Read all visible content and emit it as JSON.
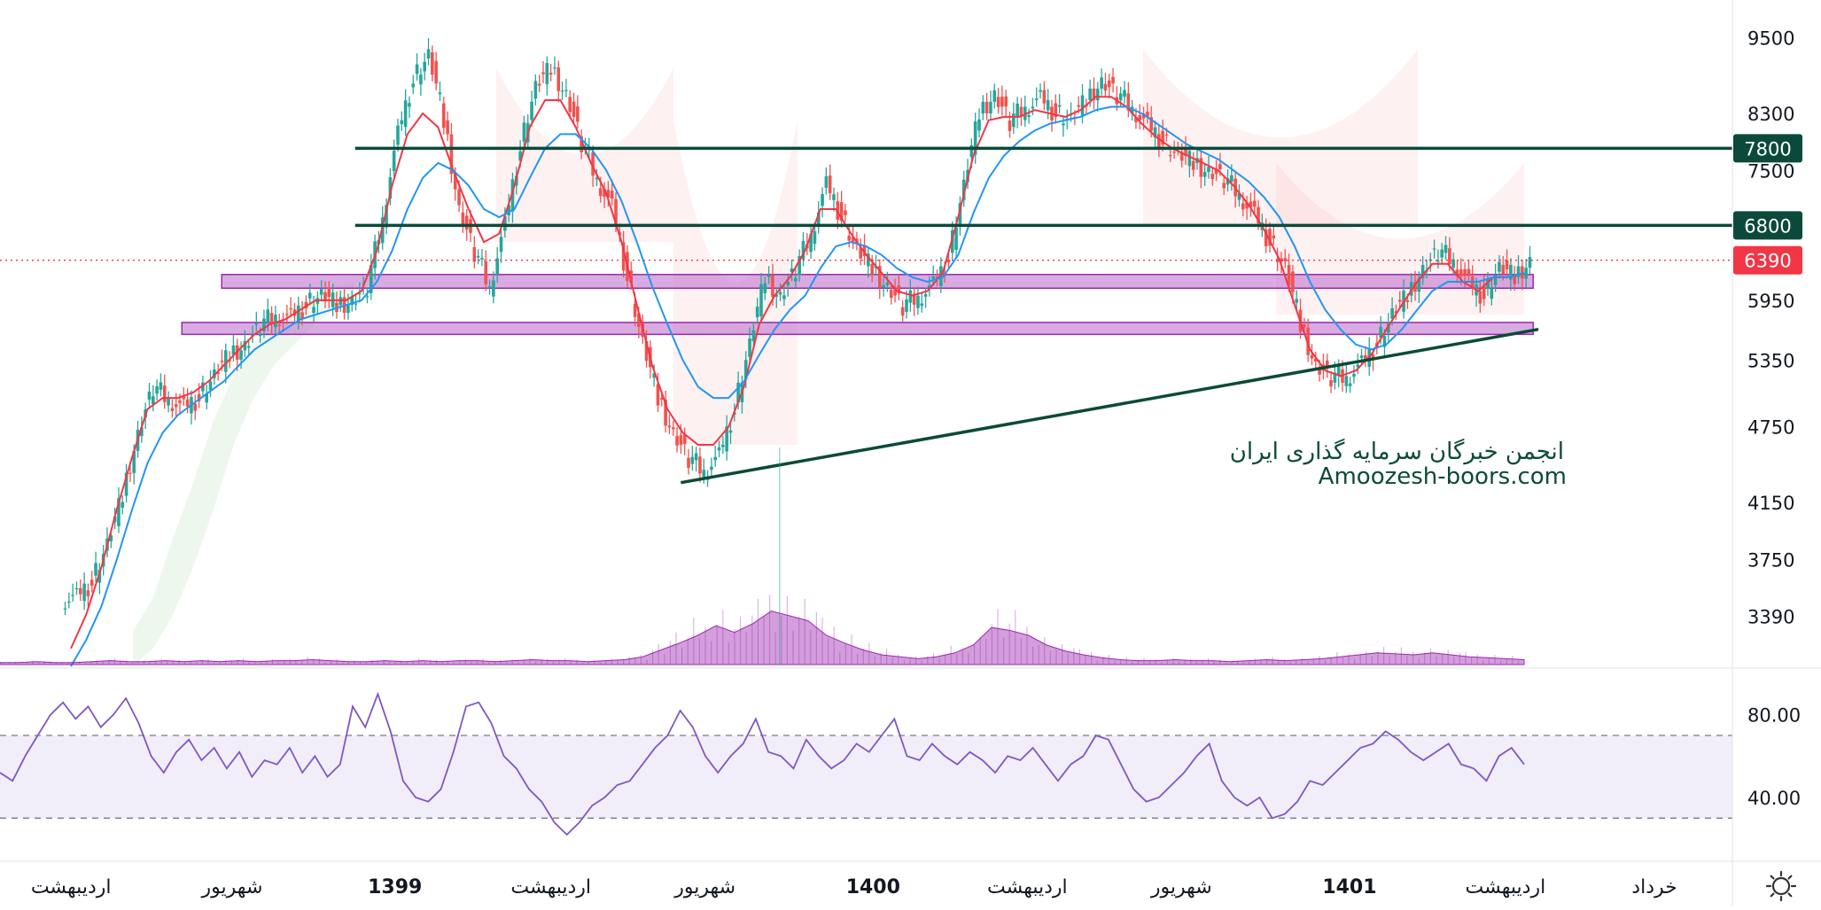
{
  "chart_data": {
    "type": "candlestick",
    "price_scale": {
      "ticks": [
        "9500",
        "8300",
        "7500",
        "5950",
        "5350",
        "4750",
        "4150",
        "3750",
        "3390"
      ],
      "ylim": [
        3100,
        10000
      ],
      "log_scale": true
    },
    "price_badges": [
      {
        "label": "7800",
        "value": 7800,
        "color": "#0b4a3a"
      },
      {
        "label": "6800",
        "value": 6800,
        "color": "#0b4a3a"
      },
      {
        "label": "6390",
        "value": 6390,
        "color": "#f23645"
      }
    ],
    "last_price": 6390,
    "resistance_lines": [
      7800,
      6800
    ],
    "support_zones": [
      {
        "low": 6080,
        "high": 6230,
        "from": 0.128,
        "to": 0.885
      },
      {
        "low": 5600,
        "high": 5720,
        "from": 0.105,
        "to": 0.885
      }
    ],
    "trendline": {
      "from": {
        "x": 0.393,
        "price": 4300
      },
      "to": {
        "x": 0.888,
        "price": 5650
      }
    },
    "ohlc_closes": [
      3500,
      3600,
      3850,
      4200,
      4700,
      5100,
      5000,
      4900,
      5000,
      5200,
      5400,
      5500,
      5700,
      5800,
      5750,
      5900,
      6000,
      5900,
      5950,
      6100,
      6900,
      8000,
      8800,
      9200,
      8200,
      7000,
      6500,
      6100,
      6800,
      7800,
      8700,
      9000,
      8600,
      7900,
      7400,
      7000,
      6200,
      5500,
      5000,
      4700,
      4500,
      4400,
      4500,
      4900,
      5500,
      6200,
      6000,
      6300,
      6700,
      7300,
      6900,
      6500,
      6300,
      6100,
      5900,
      6000,
      6100,
      6400,
      7300,
      8300,
      8600,
      8200,
      8400,
      8500,
      8300,
      8200,
      8500,
      8800,
      8600,
      8400,
      8100,
      7900,
      7700,
      7600,
      7500,
      7400,
      7200,
      6900,
      6600,
      6300,
      5700,
      5300,
      5200,
      5200,
      5300,
      5500,
      5800,
      6000,
      6300,
      6500,
      6400,
      6100,
      6000,
      6300,
      6200,
      6390
    ],
    "moving_averages": [
      {
        "color": "#f23645",
        "values": [
          3200,
          3400,
          3700,
          4100,
          4500,
          4900,
          5000,
          5000,
          5050,
          5150,
          5300,
          5450,
          5600,
          5700,
          5750,
          5850,
          5950,
          5950,
          5950,
          6050,
          6500,
          7300,
          8000,
          8300,
          8100,
          7500,
          7000,
          6600,
          6700,
          7300,
          8100,
          8500,
          8500,
          8100,
          7600,
          7200,
          6600,
          5900,
          5300,
          4900,
          4700,
          4600,
          4600,
          4750,
          5100,
          5700,
          6000,
          6200,
          6500,
          7000,
          7000,
          6700,
          6450,
          6250,
          6050,
          6000,
          6050,
          6250,
          6900,
          7700,
          8200,
          8250,
          8250,
          8350,
          8300,
          8250,
          8350,
          8550,
          8550,
          8400,
          8150,
          7950,
          7800,
          7700,
          7600,
          7500,
          7300,
          7050,
          6750,
          6400,
          5900,
          5450,
          5250,
          5200,
          5250,
          5400,
          5650,
          5900,
          6150,
          6350,
          6350,
          6150,
          6050,
          6200,
          6200,
          6250
        ]
      },
      {
        "color": "#2196f3",
        "values": [
          3100,
          3250,
          3450,
          3750,
          4100,
          4450,
          4700,
          4850,
          4950,
          5050,
          5150,
          5300,
          5450,
          5550,
          5650,
          5750,
          5800,
          5850,
          5900,
          5950,
          6150,
          6500,
          7000,
          7400,
          7600,
          7500,
          7300,
          7000,
          6900,
          7000,
          7400,
          7800,
          8000,
          8000,
          7800,
          7500,
          7100,
          6600,
          6100,
          5700,
          5350,
          5100,
          5000,
          5000,
          5150,
          5400,
          5650,
          5850,
          6000,
          6300,
          6550,
          6600,
          6550,
          6450,
          6300,
          6200,
          6150,
          6200,
          6450,
          6950,
          7400,
          7700,
          7900,
          8050,
          8150,
          8200,
          8250,
          8350,
          8400,
          8400,
          8300,
          8150,
          8000,
          7850,
          7750,
          7650,
          7500,
          7350,
          7150,
          6900,
          6550,
          6150,
          5850,
          5650,
          5500,
          5450,
          5500,
          5650,
          5850,
          6050,
          6150,
          6150,
          6150,
          6200,
          6200,
          6250
        ]
      }
    ],
    "ichimoku_cloud": [
      {
        "top": 3300,
        "bottom": 3100
      },
      {
        "top": 3500,
        "bottom": 3200
      },
      {
        "top": 3900,
        "bottom": 3400
      },
      {
        "top": 4300,
        "bottom": 3700
      },
      {
        "top": 4800,
        "bottom": 4100
      },
      {
        "top": 5200,
        "bottom": 4600
      },
      {
        "top": 5500,
        "bottom": 5000
      },
      {
        "top": 5700,
        "bottom": 5300
      },
      {
        "top": 5900,
        "bottom": 5500
      },
      {
        "top": 6000,
        "bottom": 5700
      },
      {
        "top": 6100,
        "bottom": 5850
      },
      {
        "top": 6150,
        "bottom": 5950
      }
    ],
    "time_labels": [
      {
        "label": "اردیبهشت",
        "bold": false,
        "x": 0.041
      },
      {
        "label": "شهریور",
        "bold": false,
        "x": 0.134
      },
      {
        "label": "1399",
        "bold": true,
        "x": 0.228
      },
      {
        "label": "اردیبهشت",
        "bold": false,
        "x": 0.318
      },
      {
        "label": "شهریور",
        "bold": false,
        "x": 0.407
      },
      {
        "label": "1400",
        "bold": true,
        "x": 0.504
      },
      {
        "label": "اردیبهشت",
        "bold": false,
        "x": 0.593
      },
      {
        "label": "شهریور",
        "bold": false,
        "x": 0.682
      },
      {
        "label": "1401",
        "bold": true,
        "x": 0.779
      },
      {
        "label": "اردیبهشت",
        "bold": false,
        "x": 0.869
      },
      {
        "label": "خرداد",
        "bold": false,
        "x": 0.955
      }
    ],
    "volume_profile": [
      0.02,
      0.02,
      0.03,
      0.02,
      0.02,
      0.03,
      0.04,
      0.03,
      0.03,
      0.04,
      0.03,
      0.04,
      0.03,
      0.04,
      0.03,
      0.04,
      0.04,
      0.05,
      0.04,
      0.03,
      0.03,
      0.04,
      0.03,
      0.04,
      0.03,
      0.04,
      0.04,
      0.03,
      0.04,
      0.05,
      0.04,
      0.04,
      0.03,
      0.04,
      0.05,
      0.08,
      0.15,
      0.22,
      0.3,
      0.4,
      0.33,
      0.42,
      0.55,
      0.5,
      0.45,
      0.3,
      0.22,
      0.15,
      0.1,
      0.08,
      0.06,
      0.08,
      0.12,
      0.2,
      0.38,
      0.35,
      0.3,
      0.2,
      0.14,
      0.1,
      0.07,
      0.05,
      0.04,
      0.04,
      0.05,
      0.04,
      0.04,
      0.03,
      0.04,
      0.05,
      0.04,
      0.05,
      0.06,
      0.08,
      0.1,
      0.12,
      0.11,
      0.1,
      0.12,
      0.1,
      0.08,
      0.07,
      0.06,
      0.05
    ],
    "volume_spike_at": 0.45,
    "rsi": {
      "ticks": [
        "80.00",
        "40.00"
      ],
      "ylim": [
        10,
        100
      ],
      "band": [
        70,
        30
      ],
      "values": [
        52,
        48,
        60,
        70,
        80,
        86,
        78,
        84,
        74,
        80,
        88,
        76,
        60,
        52,
        62,
        68,
        58,
        64,
        54,
        62,
        50,
        58,
        56,
        64,
        52,
        60,
        50,
        56,
        84,
        74,
        90,
        72,
        48,
        40,
        38,
        44,
        62,
        84,
        86,
        76,
        60,
        54,
        44,
        38,
        28,
        22,
        28,
        36,
        40,
        46,
        48,
        56,
        64,
        70,
        82,
        74,
        60,
        52,
        60,
        66,
        78,
        62,
        60,
        54,
        68,
        60,
        54,
        58,
        66,
        62,
        70,
        78,
        60,
        58,
        66,
        60,
        56,
        62,
        58,
        52,
        60,
        58,
        64,
        56,
        48,
        56,
        60,
        70,
        68,
        56,
        44,
        38,
        40,
        46,
        52,
        60,
        66,
        48,
        40,
        36,
        40,
        30,
        32,
        38,
        48,
        46,
        52,
        58,
        64,
        66,
        72,
        68,
        62,
        58,
        62,
        66,
        56,
        54,
        48,
        60,
        64,
        56
      ]
    },
    "watermark": {
      "line1": "انجمن خبرگان سرمایه گذاری ایران",
      "line2": "Amoozesh-boors.com"
    }
  },
  "ui": {
    "settings_icon": "sun-gear-icon"
  }
}
